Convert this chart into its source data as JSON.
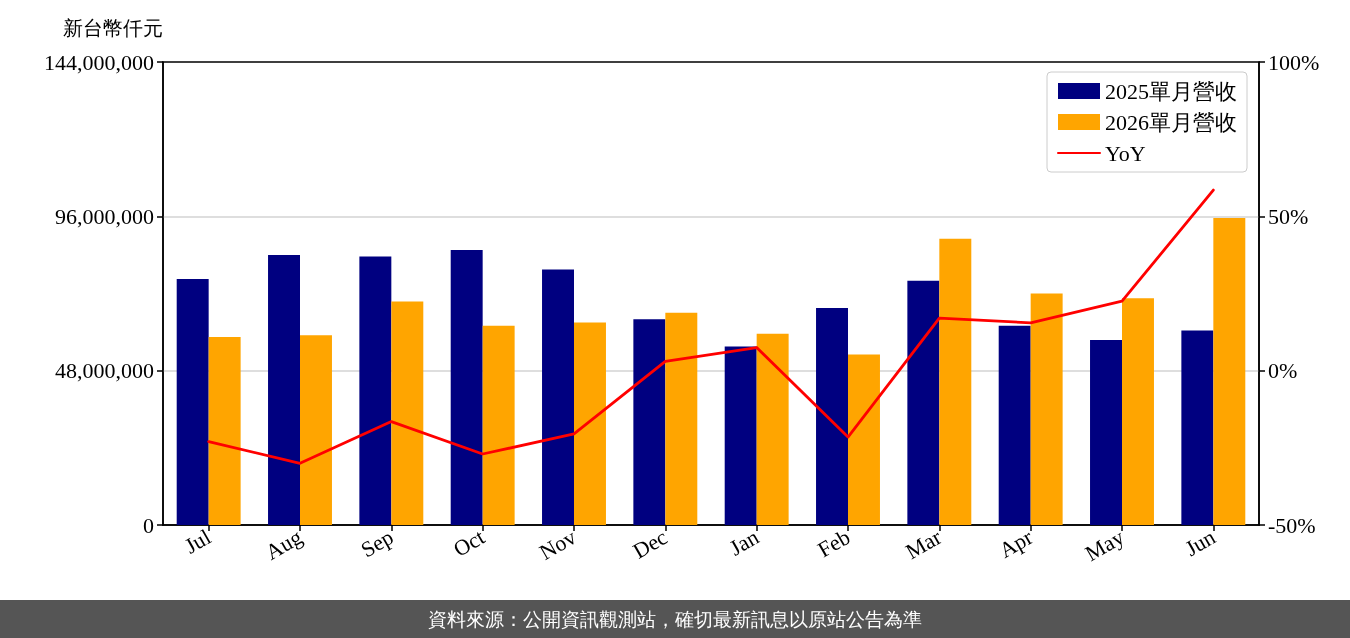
{
  "chart_data": {
    "type": "bar",
    "ylabel": "新台幣仟元",
    "categories": [
      "Jul",
      "Aug",
      "Sep",
      "Oct",
      "Nov",
      "Dec",
      "Jan",
      "Feb",
      "Mar",
      "Apr",
      "May",
      "Jun"
    ],
    "series": [
      {
        "name": "2025單月營收",
        "color": "#000080",
        "values": [
          76500000,
          84000000,
          83500000,
          85500000,
          79500000,
          64000000,
          55500000,
          67500000,
          76000000,
          62000000,
          57500000,
          60500000
        ]
      },
      {
        "name": "2026單月營收",
        "color": "#ffa500",
        "values": [
          58500000,
          59000000,
          69500000,
          62000000,
          63000000,
          66000000,
          59500000,
          53000000,
          89000000,
          72000000,
          70500000,
          95500000
        ]
      },
      {
        "name": "YoY",
        "type": "line",
        "axis": "y2",
        "color": "#ff0000",
        "values": [
          -23,
          -30,
          -16.5,
          -27,
          -20.5,
          3,
          7.5,
          -21.5,
          17,
          15.5,
          22.5,
          58.5
        ]
      }
    ],
    "ylim": [
      0,
      144000000
    ],
    "yticks": [
      {
        "value": 0,
        "label": "0"
      },
      {
        "value": 48000000,
        "label": "48,000,000"
      },
      {
        "value": 96000000,
        "label": "96,000,000"
      },
      {
        "value": 144000000,
        "label": "144,000,000"
      }
    ],
    "y2lim": [
      -50,
      100
    ],
    "y2ticks": [
      {
        "value": -50,
        "label": "-50%"
      },
      {
        "value": 0,
        "label": "0%"
      },
      {
        "value": 50,
        "label": "50%"
      },
      {
        "value": 100,
        "label": "100%"
      }
    ],
    "grid": "y",
    "legend": "top right",
    "annotations": [
      "資料來源：公開資訊觀測站，確切最新訊息以原站公告為準"
    ]
  }
}
